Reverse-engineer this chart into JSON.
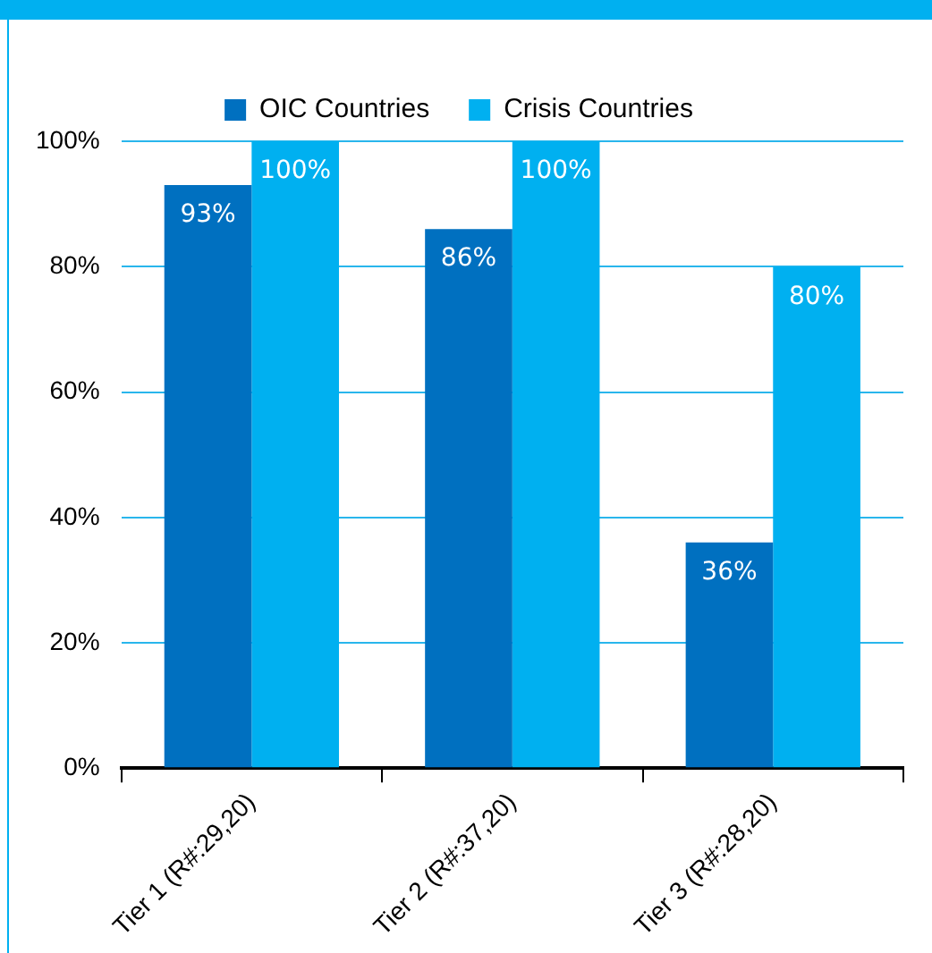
{
  "chart_data": {
    "type": "bar",
    "categories": [
      "Tier 1 (R#:29,20)",
      "Tier 2 (R#:37,20)",
      "Tier 3 (R#:28,20)"
    ],
    "series": [
      {
        "name": "OIC Countries",
        "color": "#0070c0",
        "values": [
          93,
          86,
          36
        ],
        "value_labels": [
          "93%",
          "86%",
          "36%"
        ]
      },
      {
        "name": "Crisis Countries",
        "color": "#00b0f0",
        "values": [
          100,
          100,
          80
        ],
        "value_labels": [
          "100%",
          "100%",
          "80%"
        ]
      }
    ],
    "ylim": [
      0,
      100
    ],
    "yticks": [
      {
        "value": 0,
        "label": "0%"
      },
      {
        "value": 20,
        "label": "20%"
      },
      {
        "value": 40,
        "label": "40%"
      },
      {
        "value": 60,
        "label": "60%"
      },
      {
        "value": 80,
        "label": "80%"
      },
      {
        "value": 100,
        "label": "100%"
      }
    ],
    "grid": "y",
    "legend": "top"
  }
}
